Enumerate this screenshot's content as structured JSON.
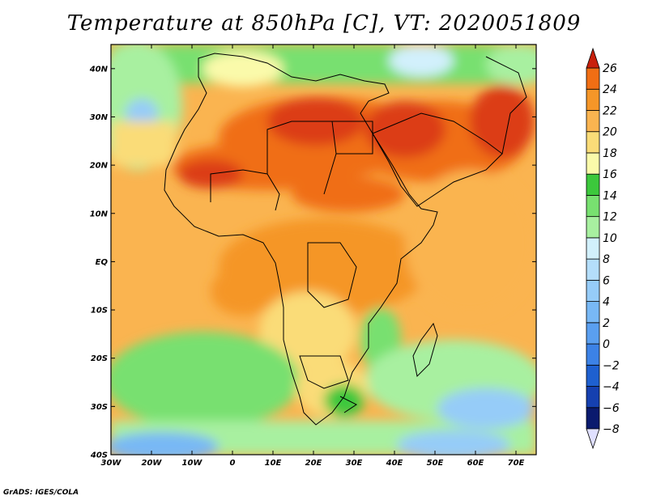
{
  "title": "Temperature at 850hPa [C], VT: 2020051809",
  "credit": "GrADS: IGES/COLA",
  "map": {
    "lon_range": [
      -30,
      75
    ],
    "lat_range": [
      -40,
      45
    ],
    "lat_ticks": [
      {
        "value": 40,
        "label": "40N"
      },
      {
        "value": 30,
        "label": "30N"
      },
      {
        "value": 20,
        "label": "20N"
      },
      {
        "value": 10,
        "label": "10N"
      },
      {
        "value": 0,
        "label": "EQ"
      },
      {
        "value": -10,
        "label": "10S"
      },
      {
        "value": -20,
        "label": "20S"
      },
      {
        "value": -30,
        "label": "30S"
      },
      {
        "value": -40,
        "label": "40S"
      }
    ],
    "lon_ticks": [
      {
        "value": -30,
        "label": "30W"
      },
      {
        "value": -20,
        "label": "20W"
      },
      {
        "value": -10,
        "label": "10W"
      },
      {
        "value": 0,
        "label": "0"
      },
      {
        "value": 10,
        "label": "10E"
      },
      {
        "value": 20,
        "label": "20E"
      },
      {
        "value": 30,
        "label": "30E"
      },
      {
        "value": 40,
        "label": "40E"
      },
      {
        "value": 50,
        "label": "50E"
      },
      {
        "value": 60,
        "label": "60E"
      },
      {
        "value": 70,
        "label": "70E"
      }
    ],
    "colorbar": [
      {
        "value": "-8",
        "color": "#0a1a6e"
      },
      {
        "value": "-6",
        "color": "#1540b0"
      },
      {
        "value": "-4",
        "color": "#1e60d0"
      },
      {
        "value": "-2",
        "color": "#3c82e6"
      },
      {
        "value": "0",
        "color": "#5a9ff0"
      },
      {
        "value": "2",
        "color": "#78b8f5"
      },
      {
        "value": "4",
        "color": "#96ccf8"
      },
      {
        "value": "6",
        "color": "#b4defa"
      },
      {
        "value": "8",
        "color": "#d2f0fc"
      },
      {
        "value": "10",
        "color": "#a8f0a0"
      },
      {
        "value": "12",
        "color": "#78e070"
      },
      {
        "value": "14",
        "color": "#3cc83c"
      },
      {
        "value": "16",
        "color": "#fafaaa"
      },
      {
        "value": "18",
        "color": "#fadc78"
      },
      {
        "value": "20",
        "color": "#fab450"
      },
      {
        "value": "22",
        "color": "#f59628"
      },
      {
        "value": "24",
        "color": "#f06e14"
      },
      {
        "value": "26",
        "color": "#dc3c14"
      }
    ],
    "colors": {
      "over": "#c8200c",
      "under": "#e0e0ff"
    }
  }
}
